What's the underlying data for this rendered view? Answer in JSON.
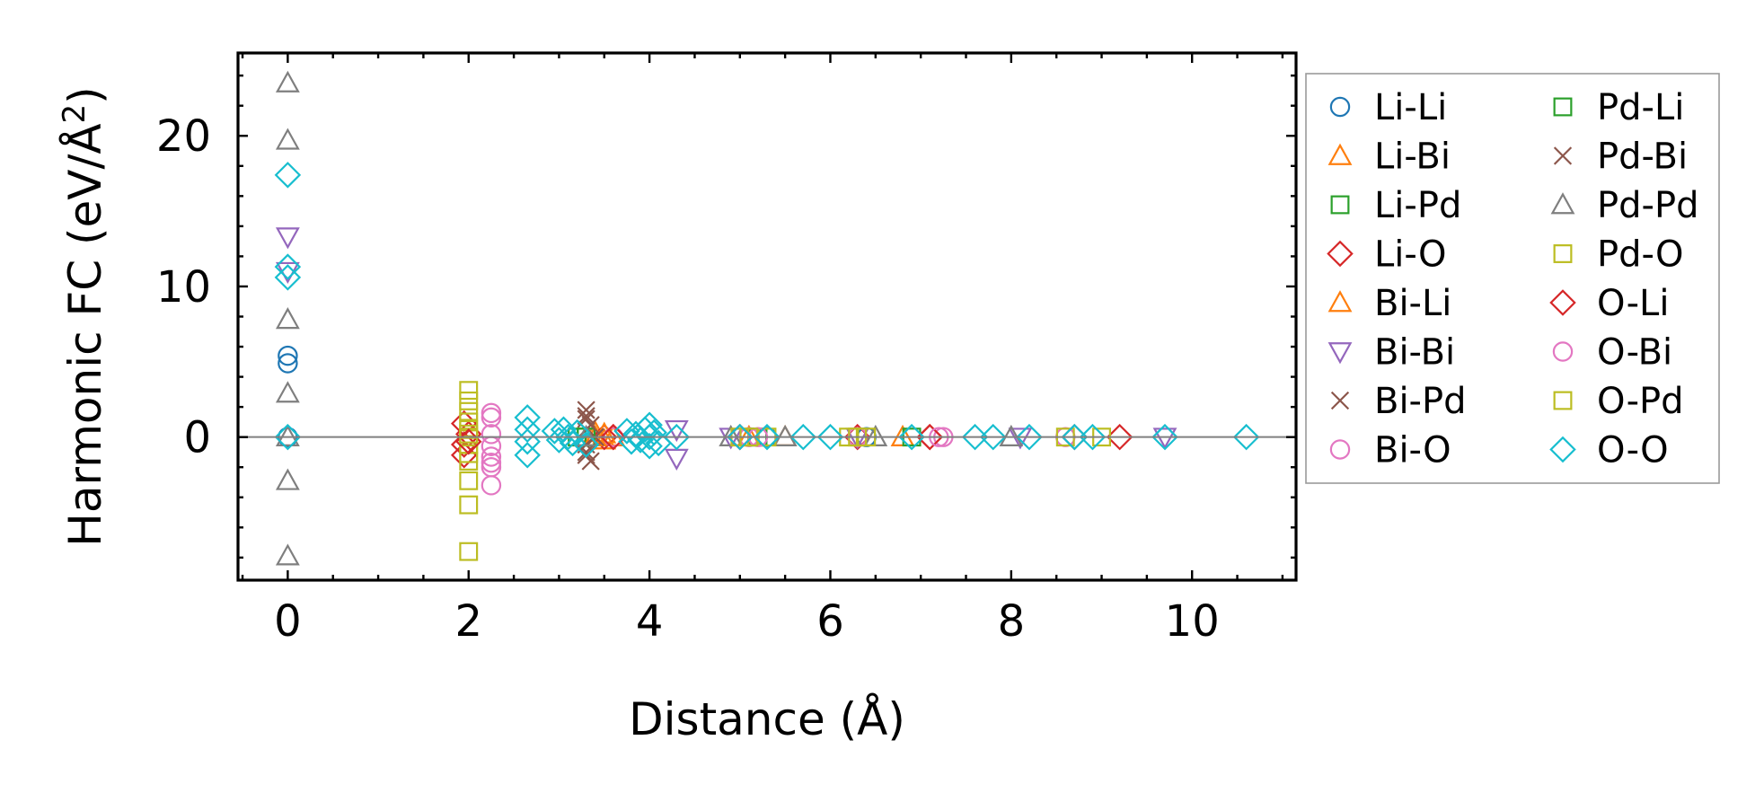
{
  "chart_data": {
    "type": "scatter",
    "title": "",
    "xlabel": "Distance (Å)",
    "ylabel_main": "Harmonic FC (eV/Å",
    "ylabel_sup": "2",
    "ylabel_close": ")",
    "xlim": [
      -0.55,
      11.15
    ],
    "ylim": [
      -9.5,
      25.5
    ],
    "xticks": [
      0,
      2,
      4,
      6,
      8,
      10
    ],
    "yticks": [
      0,
      10,
      20
    ],
    "xtick_labels": [
      "0",
      "2",
      "4",
      "6",
      "8",
      "10"
    ],
    "ytick_labels": [
      "0",
      "10",
      "20"
    ],
    "grid": false,
    "legend_position": "outside-right",
    "series": [
      {
        "name": "Li-Li",
        "marker": "circle",
        "color": "#1f77b4",
        "x": [
          0,
          0,
          0,
          0,
          5.3,
          6.4
        ],
        "y": [
          5.4,
          4.9,
          0,
          0,
          0,
          0
        ]
      },
      {
        "name": "Li-Bi",
        "marker": "triangle-up",
        "color": "#ff7f0e",
        "x": [
          3.4,
          3.5,
          3.6,
          5.5,
          6.8
        ],
        "y": [
          0.3,
          -0.2,
          0,
          0,
          0
        ]
      },
      {
        "name": "Li-Pd",
        "marker": "square",
        "color": "#2ca02c",
        "x": [
          3.2,
          3.3,
          5.2,
          6.9
        ],
        "y": [
          0,
          0,
          0,
          0
        ]
      },
      {
        "name": "Li-O",
        "marker": "diamond",
        "color": "#d62728",
        "x": [
          1.95,
          1.95,
          1.95,
          2.0,
          3.5,
          3.6,
          5.0,
          6.3,
          7.1,
          8.7,
          9.2
        ],
        "y": [
          0.9,
          -0.5,
          -1.2,
          0.2,
          0,
          0,
          0,
          0,
          0,
          0,
          0
        ]
      },
      {
        "name": "Bi-Li",
        "marker": "triangle-up",
        "color": "#ff7f0e",
        "x": [
          3.4,
          3.5,
          5.1
        ],
        "y": [
          0,
          0.2,
          0
        ]
      },
      {
        "name": "Bi-Bi",
        "marker": "triangle-down",
        "color": "#9467bd",
        "x": [
          0,
          0,
          4.3,
          4.3,
          4.9,
          6.3,
          8.1,
          9.7
        ],
        "y": [
          13.3,
          11.0,
          -1.4,
          0.5,
          0,
          0,
          0,
          0
        ]
      },
      {
        "name": "Bi-Pd",
        "marker": "x",
        "color": "#8c564b",
        "x": [
          3.3,
          3.3,
          3.3,
          3.3,
          3.3,
          3.35,
          3.4
        ],
        "y": [
          1.8,
          1.2,
          0.5,
          -0.5,
          -1.0,
          -1.6,
          0
        ]
      },
      {
        "name": "Bi-O",
        "marker": "circle",
        "color": "#e377c2",
        "x": [
          2.25,
          2.25,
          2.25,
          2.25,
          2.25,
          2.25,
          2.25,
          3.6,
          5.1,
          6.3,
          7.25,
          8.6
        ],
        "y": [
          1.6,
          1.3,
          -0.6,
          -1.3,
          -1.7,
          -2.0,
          -3.2,
          0,
          0,
          0,
          0,
          0
        ]
      },
      {
        "name": "Pd-Li",
        "marker": "square",
        "color": "#2ca02c",
        "x": [
          3.3,
          5.2
        ],
        "y": [
          0,
          0
        ]
      },
      {
        "name": "Pd-Bi",
        "marker": "x",
        "color": "#8c564b",
        "x": [
          3.3,
          3.3,
          3.35
        ],
        "y": [
          1.4,
          -1.2,
          0.8
        ]
      },
      {
        "name": "Pd-Pd",
        "marker": "triangle-up",
        "color": "#7f7f7f",
        "x": [
          0,
          0,
          0,
          0,
          0,
          0,
          0,
          3.3,
          4.9,
          5.5,
          6.5,
          8.0
        ],
        "y": [
          23.5,
          19.7,
          7.8,
          2.9,
          0,
          -2.9,
          -7.9,
          0,
          0,
          0,
          0,
          0
        ]
      },
      {
        "name": "Pd-O",
        "marker": "square",
        "color": "#bcbd22",
        "x": [
          2.0,
          2.0,
          2.0,
          2.0,
          2.0,
          2.0,
          2.0,
          2.0,
          2.0,
          2.0,
          2.0,
          2.0,
          5.0,
          5.3,
          6.2,
          6.4,
          8.6,
          9.0
        ],
        "y": [
          3.1,
          2.4,
          1.7,
          1.0,
          0.5,
          0,
          -0.5,
          -1.1,
          -1.6,
          -2.9,
          -4.5,
          -7.6,
          0,
          0,
          0,
          0,
          0,
          0
        ]
      },
      {
        "name": "O-Li",
        "marker": "diamond",
        "color": "#d62728",
        "x": [
          2.0,
          3.6,
          5.0,
          7.1
        ],
        "y": [
          -0.3,
          0,
          0,
          0
        ]
      },
      {
        "name": "O-Bi",
        "marker": "circle",
        "color": "#e377c2",
        "x": [
          2.25,
          5.2,
          7.2
        ],
        "y": [
          0.2,
          0,
          0
        ]
      },
      {
        "name": "O-Pd",
        "marker": "square",
        "color": "#bcbd22",
        "x": [
          2.0,
          5.1,
          6.3
        ],
        "y": [
          0.2,
          0,
          0
        ]
      },
      {
        "name": "O-O",
        "marker": "diamond",
        "color": "#17becf",
        "x": [
          0,
          0,
          0,
          0,
          2.65,
          2.65,
          2.65,
          2.65,
          2.95,
          3.0,
          3.05,
          3.1,
          3.15,
          3.2,
          3.3,
          3.75,
          3.8,
          3.85,
          3.9,
          3.95,
          4.0,
          4.0,
          4.0,
          4.05,
          4.1,
          4.3,
          5.0,
          5.3,
          5.7,
          6.0,
          6.9,
          7.6,
          7.8,
          8.2,
          8.7,
          8.9,
          9.7,
          10.6
        ],
        "y": [
          17.4,
          11.3,
          10.6,
          0,
          1.3,
          0.5,
          -0.3,
          -1.2,
          0.4,
          -0.2,
          0.5,
          0,
          -0.4,
          0.3,
          -0.5,
          0.4,
          -0.3,
          0.2,
          -0.2,
          0.5,
          0.8,
          0,
          -0.6,
          0.3,
          -0.4,
          0,
          0,
          0,
          0,
          0,
          0,
          0,
          0,
          0,
          0,
          0,
          0,
          0
        ]
      }
    ]
  }
}
